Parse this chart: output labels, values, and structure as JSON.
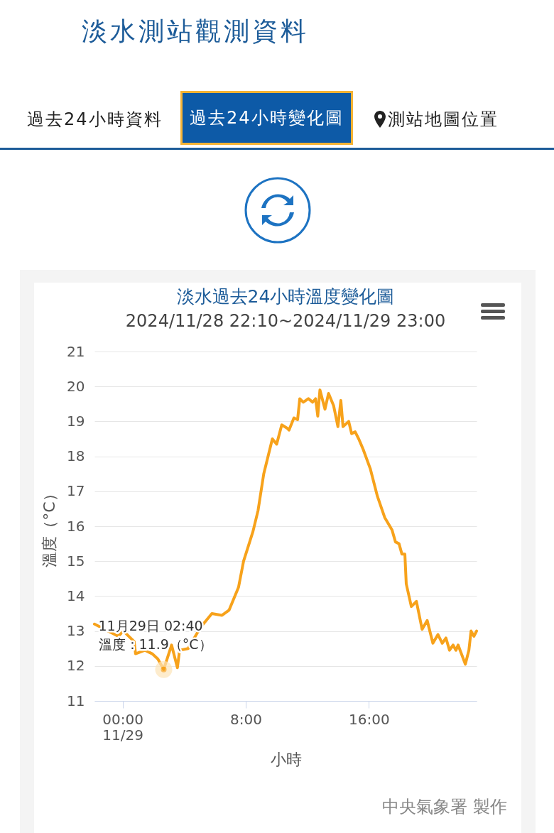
{
  "chart_data": {
    "type": "line",
    "title": "淡水過去24小時溫度變化圖",
    "subtitle": "2024/11/28 22:10~2024/11/29 23:00",
    "xlabel": "小時",
    "ylabel": "溫度（°C）",
    "annotations": [
      "淡水測站觀測資料",
      "過去24小時資料",
      "過去24小時變化圖",
      "測站地圖位置",
      "中央氣象署 製作",
      {
        "text": "11月29日 02:40\n溫度：11.9（°C）",
        "x": 2.67,
        "y": 11.9
      }
    ],
    "series": [
      {
        "color": "#f7a21b",
        "x": [
          -1.83,
          -0.28,
          0.05,
          0.75,
          0.84,
          1.45,
          1.92,
          2.29,
          2.67,
          3.18,
          3.56,
          3.7,
          4.26,
          5.05,
          5.8,
          6.46,
          6.92,
          7.53,
          7.86,
          8.47,
          8.8,
          9.17,
          9.73,
          10.01,
          10.34,
          10.71,
          10.81,
          11.13,
          11.37,
          11.51,
          11.74,
          12.07,
          12.35,
          12.54,
          12.68,
          12.82,
          13.15,
          13.38,
          13.71,
          13.99,
          14.18,
          14.32,
          14.69,
          14.88,
          15.11,
          15.34,
          15.63,
          16.09,
          16.56,
          17.03,
          17.5,
          17.73,
          17.96,
          18.15,
          18.34,
          18.43,
          18.76,
          19.09,
          19.46,
          19.79,
          20.16,
          20.49,
          20.77,
          21.01,
          21.24,
          21.47,
          21.66,
          21.8,
          22.27,
          22.5,
          22.64,
          22.83,
          23
        ],
        "values": [
          13.2,
          12.85,
          13.0,
          12.7,
          12.35,
          12.45,
          12.35,
          12.2,
          11.9,
          12.6,
          11.95,
          12.45,
          12.5,
          13.1,
          13.5,
          13.45,
          13.6,
          14.25,
          15.0,
          15.85,
          16.45,
          17.5,
          18.5,
          18.35,
          18.9,
          18.8,
          18.75,
          19.1,
          19.05,
          19.65,
          19.55,
          19.65,
          19.55,
          19.65,
          19.15,
          19.9,
          19.35,
          19.8,
          19.45,
          18.85,
          19.6,
          18.85,
          19.0,
          18.65,
          18.7,
          18.5,
          18.2,
          17.65,
          16.85,
          16.25,
          15.9,
          15.55,
          15.5,
          15.2,
          15.2,
          14.35,
          13.7,
          13.85,
          13.05,
          13.3,
          12.65,
          12.9,
          12.65,
          12.8,
          12.45,
          12.6,
          12.45,
          12.6,
          12.05,
          12.45,
          13.0,
          12.85,
          13.0
        ]
      }
    ],
    "xlim": [
      -1.83,
      23
    ],
    "xticks": [
      {
        "value": 0,
        "label": "00:00\n11/29"
      },
      {
        "value": 8,
        "label": "8:00"
      },
      {
        "value": 16,
        "label": "16:00"
      }
    ],
    "ylim": [
      11,
      21
    ],
    "yticks": [
      11,
      12,
      13,
      14,
      15,
      16,
      17,
      18,
      19,
      20,
      21
    ],
    "grid": "y",
    "marker": "none",
    "line_style": "solid"
  }
}
